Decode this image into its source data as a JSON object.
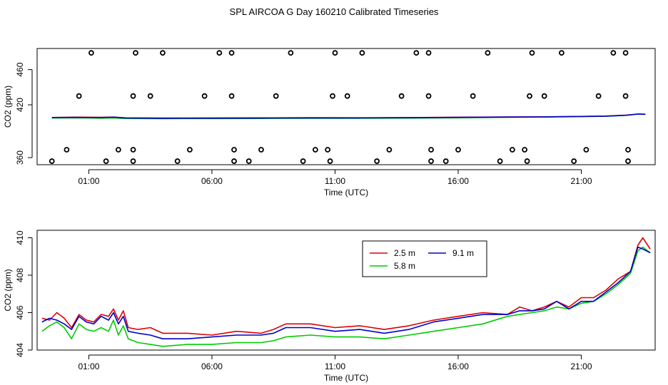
{
  "title": "SPL AIRCOA G  Day 160210  Calibrated Timeseries",
  "colors": {
    "s25": "#dd0000",
    "s58": "#00cc00",
    "s91": "#0000cc"
  },
  "chart_data": [
    {
      "type": "scatter",
      "title": "SPL AIRCOA G  Day 160210  Calibrated Timeseries",
      "xlabel": "Time (UTC)",
      "ylabel": "CO2 (ppm)",
      "xlim": [
        -1.1,
        24.0
      ],
      "ylim": [
        352,
        484
      ],
      "x_ticks": [
        {
          "v": 1,
          "label": "01:00"
        },
        {
          "v": 6,
          "label": "06:00"
        },
        {
          "v": 11,
          "label": "11:00"
        },
        {
          "v": 16,
          "label": "16:00"
        },
        {
          "v": 21,
          "label": "21:00"
        }
      ],
      "y_ticks": [
        {
          "v": 360,
          "label": "360"
        },
        {
          "v": 420,
          "label": "420"
        },
        {
          "v": 460,
          "label": "460"
        }
      ],
      "series": [
        {
          "color": "#dd0000",
          "points": [
            [
              -0.5,
              405.6
            ],
            [
              0.5,
              406.0
            ],
            [
              1.5,
              405.8
            ],
            [
              2.0,
              406.1
            ],
            [
              2.5,
              405.2
            ],
            [
              4,
              405.0
            ],
            [
              6,
              405.1
            ],
            [
              8,
              405.2
            ],
            [
              10,
              405.4
            ],
            [
              12,
              405.3
            ],
            [
              14,
              405.5
            ],
            [
              16,
              405.9
            ],
            [
              18,
              406.2
            ],
            [
              19.5,
              406.3
            ],
            [
              21,
              406.8
            ],
            [
              22,
              407.3
            ],
            [
              22.8,
              408.2
            ],
            [
              23.3,
              409.6
            ],
            [
              23.6,
              409.4
            ]
          ]
        },
        {
          "color": "#00cc00",
          "points": [
            [
              -0.5,
              405.0
            ],
            [
              0.5,
              405.2
            ],
            [
              1.5,
              404.8
            ],
            [
              2.0,
              405.1
            ],
            [
              2.5,
              404.5
            ],
            [
              4,
              404.3
            ],
            [
              6,
              404.4
            ],
            [
              8,
              404.5
            ],
            [
              10,
              404.7
            ],
            [
              12,
              404.7
            ],
            [
              14,
              404.9
            ],
            [
              16,
              405.2
            ],
            [
              18,
              405.8
            ],
            [
              19.5,
              406.1
            ],
            [
              21,
              406.6
            ],
            [
              22,
              407.0
            ],
            [
              22.8,
              408.0
            ],
            [
              23.3,
              409.4
            ],
            [
              23.6,
              409.3
            ]
          ]
        },
        {
          "color": "#0000cc",
          "points": [
            [
              -0.5,
              405.6
            ],
            [
              0.5,
              405.7
            ],
            [
              1.5,
              405.6
            ],
            [
              2.0,
              406.0
            ],
            [
              2.5,
              405.0
            ],
            [
              4,
              404.7
            ],
            [
              6,
              404.8
            ],
            [
              8,
              404.9
            ],
            [
              10,
              405.1
            ],
            [
              12,
              405.1
            ],
            [
              14,
              405.4
            ],
            [
              16,
              405.8
            ],
            [
              18,
              406.1
            ],
            [
              19.5,
              406.3
            ],
            [
              21,
              406.8
            ],
            [
              22,
              407.1
            ],
            [
              22.8,
              408.1
            ],
            [
              23.3,
              409.5
            ],
            [
              23.6,
              409.2
            ]
          ]
        }
      ],
      "calibration_points": [
        [
          -0.5,
          356
        ],
        [
          0.1,
          369
        ],
        [
          0.6,
          430
        ],
        [
          1.1,
          479
        ],
        [
          1.7,
          356
        ],
        [
          2.2,
          369
        ],
        [
          2.8,
          356
        ],
        [
          2.8,
          369
        ],
        [
          2.8,
          430
        ],
        [
          2.9,
          479
        ],
        [
          3.5,
          430
        ],
        [
          4.0,
          479
        ],
        [
          4.6,
          356
        ],
        [
          5.1,
          369
        ],
        [
          5.7,
          430
        ],
        [
          6.3,
          479
        ],
        [
          6.8,
          479
        ],
        [
          6.8,
          430
        ],
        [
          6.9,
          369
        ],
        [
          6.9,
          356
        ],
        [
          7.5,
          356
        ],
        [
          8.0,
          369
        ],
        [
          8.6,
          430
        ],
        [
          9.2,
          479
        ],
        [
          9.7,
          356
        ],
        [
          10.2,
          369
        ],
        [
          10.7,
          369
        ],
        [
          10.8,
          356
        ],
        [
          10.9,
          430
        ],
        [
          11.0,
          479
        ],
        [
          11.5,
          430
        ],
        [
          12.1,
          479
        ],
        [
          12.7,
          356
        ],
        [
          13.2,
          369
        ],
        [
          13.7,
          430
        ],
        [
          14.3,
          479
        ],
        [
          14.8,
          479
        ],
        [
          14.8,
          430
        ],
        [
          14.9,
          369
        ],
        [
          14.9,
          356
        ],
        [
          15.5,
          356
        ],
        [
          16.0,
          369
        ],
        [
          16.6,
          430
        ],
        [
          17.2,
          479
        ],
        [
          17.7,
          356
        ],
        [
          18.2,
          369
        ],
        [
          18.7,
          369
        ],
        [
          18.8,
          356
        ],
        [
          18.9,
          430
        ],
        [
          19.0,
          479
        ],
        [
          19.5,
          430
        ],
        [
          20.2,
          479
        ],
        [
          20.7,
          356
        ],
        [
          21.2,
          369
        ],
        [
          21.7,
          430
        ],
        [
          22.3,
          479
        ],
        [
          22.8,
          479
        ],
        [
          22.8,
          430
        ],
        [
          22.9,
          369
        ],
        [
          22.9,
          356
        ]
      ]
    },
    {
      "type": "line",
      "xlabel": "Time (UTC)",
      "ylabel": "CO2 (ppm)",
      "xlim": [
        -1.1,
        24.0
      ],
      "ylim": [
        404.0,
        410.4
      ],
      "x_ticks": [
        {
          "v": 1,
          "label": "01:00"
        },
        {
          "v": 6,
          "label": "06:00"
        },
        {
          "v": 11,
          "label": "11:00"
        },
        {
          "v": 16,
          "label": "16:00"
        },
        {
          "v": 21,
          "label": "21:00"
        }
      ],
      "y_ticks": [
        {
          "v": 404,
          "label": "404"
        },
        {
          "v": 406,
          "label": "406"
        },
        {
          "v": 408,
          "label": "408"
        },
        {
          "v": 410,
          "label": "410"
        }
      ],
      "legend": {
        "position": "top-right"
      },
      "series": [
        {
          "name": "2.5 m",
          "color": "#dd0000",
          "points": [
            [
              -0.9,
              405.7
            ],
            [
              -0.6,
              405.6
            ],
            [
              -0.3,
              406.0
            ],
            [
              0.0,
              405.7
            ],
            [
              0.3,
              405.2
            ],
            [
              0.6,
              405.9
            ],
            [
              0.9,
              405.6
            ],
            [
              1.2,
              405.5
            ],
            [
              1.5,
              405.9
            ],
            [
              1.8,
              405.8
            ],
            [
              2.0,
              406.2
            ],
            [
              2.2,
              405.6
            ],
            [
              2.4,
              406.1
            ],
            [
              2.6,
              405.2
            ],
            [
              3.0,
              405.1
            ],
            [
              3.5,
              405.2
            ],
            [
              4.0,
              404.9
            ],
            [
              5.0,
              404.9
            ],
            [
              6.0,
              404.8
            ],
            [
              7.0,
              405.0
            ],
            [
              8.0,
              404.9
            ],
            [
              8.5,
              405.1
            ],
            [
              9.0,
              405.4
            ],
            [
              10.0,
              405.4
            ],
            [
              11.0,
              405.2
            ],
            [
              12.0,
              405.3
            ],
            [
              13.0,
              405.1
            ],
            [
              14.0,
              405.3
            ],
            [
              15.0,
              405.6
            ],
            [
              16.0,
              405.8
            ],
            [
              17.0,
              406.0
            ],
            [
              18.0,
              405.9
            ],
            [
              18.5,
              406.3
            ],
            [
              19.0,
              406.1
            ],
            [
              19.5,
              406.3
            ],
            [
              20.0,
              406.6
            ],
            [
              20.5,
              406.3
            ],
            [
              21.0,
              406.8
            ],
            [
              21.5,
              406.8
            ],
            [
              22.0,
              407.2
            ],
            [
              22.5,
              407.8
            ],
            [
              23.0,
              408.2
            ],
            [
              23.3,
              409.6
            ],
            [
              23.5,
              410.0
            ],
            [
              23.8,
              409.4
            ]
          ]
        },
        {
          "name": "5.8 m",
          "color": "#00cc00",
          "points": [
            [
              -0.9,
              405.0
            ],
            [
              -0.6,
              405.3
            ],
            [
              -0.3,
              405.5
            ],
            [
              0.0,
              405.2
            ],
            [
              0.3,
              404.6
            ],
            [
              0.6,
              405.4
            ],
            [
              0.9,
              405.1
            ],
            [
              1.2,
              405.0
            ],
            [
              1.5,
              405.2
            ],
            [
              1.8,
              405.0
            ],
            [
              2.0,
              405.6
            ],
            [
              2.2,
              404.8
            ],
            [
              2.4,
              405.3
            ],
            [
              2.6,
              404.6
            ],
            [
              3.0,
              404.4
            ],
            [
              3.5,
              404.3
            ],
            [
              4.0,
              404.2
            ],
            [
              5.0,
              404.3
            ],
            [
              6.0,
              404.3
            ],
            [
              7.0,
              404.4
            ],
            [
              8.0,
              404.4
            ],
            [
              8.5,
              404.5
            ],
            [
              9.0,
              404.7
            ],
            [
              10.0,
              404.8
            ],
            [
              11.0,
              404.7
            ],
            [
              12.0,
              404.7
            ],
            [
              13.0,
              404.6
            ],
            [
              14.0,
              404.8
            ],
            [
              15.0,
              405.0
            ],
            [
              16.0,
              405.2
            ],
            [
              17.0,
              405.4
            ],
            [
              18.0,
              405.8
            ],
            [
              18.5,
              405.9
            ],
            [
              19.0,
              406.0
            ],
            [
              19.5,
              406.1
            ],
            [
              20.0,
              406.3
            ],
            [
              20.5,
              406.2
            ],
            [
              21.0,
              406.5
            ],
            [
              21.5,
              406.6
            ],
            [
              22.0,
              407.0
            ],
            [
              22.5,
              407.5
            ],
            [
              23.0,
              408.1
            ],
            [
              23.3,
              409.3
            ],
            [
              23.5,
              409.5
            ],
            [
              23.8,
              409.2
            ]
          ]
        },
        {
          "name": "9.1 m",
          "color": "#0000cc",
          "points": [
            [
              -0.9,
              405.5
            ],
            [
              -0.6,
              405.7
            ],
            [
              -0.3,
              405.6
            ],
            [
              0.0,
              405.4
            ],
            [
              0.3,
              405.1
            ],
            [
              0.6,
              405.8
            ],
            [
              0.9,
              405.5
            ],
            [
              1.2,
              405.4
            ],
            [
              1.5,
              405.8
            ],
            [
              1.8,
              405.6
            ],
            [
              2.0,
              406.0
            ],
            [
              2.2,
              405.4
            ],
            [
              2.4,
              405.8
            ],
            [
              2.6,
              405.0
            ],
            [
              3.0,
              404.9
            ],
            [
              3.5,
              404.8
            ],
            [
              4.0,
              404.6
            ],
            [
              5.0,
              404.6
            ],
            [
              6.0,
              404.7
            ],
            [
              7.0,
              404.8
            ],
            [
              8.0,
              404.8
            ],
            [
              8.5,
              404.9
            ],
            [
              9.0,
              405.2
            ],
            [
              10.0,
              405.2
            ],
            [
              11.0,
              405.0
            ],
            [
              12.0,
              405.1
            ],
            [
              13.0,
              404.9
            ],
            [
              14.0,
              405.1
            ],
            [
              15.0,
              405.5
            ],
            [
              16.0,
              405.7
            ],
            [
              17.0,
              405.9
            ],
            [
              18.0,
              405.9
            ],
            [
              18.5,
              406.1
            ],
            [
              19.0,
              406.1
            ],
            [
              19.5,
              406.2
            ],
            [
              20.0,
              406.6
            ],
            [
              20.5,
              406.2
            ],
            [
              21.0,
              406.6
            ],
            [
              21.5,
              406.6
            ],
            [
              22.0,
              407.1
            ],
            [
              22.5,
              407.6
            ],
            [
              23.0,
              408.2
            ],
            [
              23.3,
              409.5
            ],
            [
              23.5,
              409.4
            ],
            [
              23.8,
              409.2
            ]
          ]
        }
      ]
    }
  ]
}
